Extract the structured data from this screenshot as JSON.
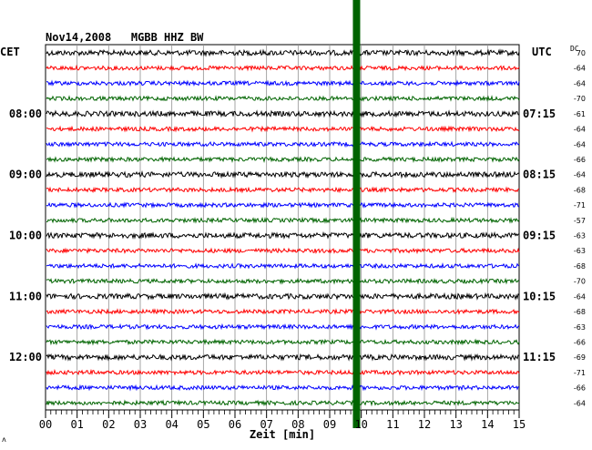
{
  "header": {
    "title": "Nov14,2008   MGBB HHZ BW",
    "left_zone": "CET",
    "right_zone": "UTC",
    "dc_label": "DC",
    "corner_mark": "ʌ"
  },
  "chart_data": {
    "type": "line",
    "subtype": "seismogram-helicorder",
    "xlabel": "Zeit [min]",
    "x_ticks": [
      "00",
      "01",
      "02",
      "03",
      "04",
      "05",
      "06",
      "07",
      "08",
      "09",
      "10",
      "11",
      "12",
      "13",
      "14",
      "15"
    ],
    "xlim": [
      0,
      15
    ],
    "trace_colors": [
      "#000000",
      "#ff0000",
      "#0000ff",
      "#006400"
    ],
    "left_time_labels": [
      {
        "row": 4,
        "label": "08:00"
      },
      {
        "row": 8,
        "label": "09:00"
      },
      {
        "row": 12,
        "label": "10:00"
      },
      {
        "row": 16,
        "label": "11:00"
      },
      {
        "row": 20,
        "label": "12:00"
      }
    ],
    "right_time_labels": [
      {
        "row": 4,
        "label": "07:15"
      },
      {
        "row": 8,
        "label": "08:15"
      },
      {
        "row": 12,
        "label": "09:15"
      },
      {
        "row": 16,
        "label": "10:15"
      },
      {
        "row": 20,
        "label": "11:15"
      }
    ],
    "dc_values": [
      "70",
      "-64",
      "-64",
      "-70",
      "-61",
      "-64",
      "-64",
      "-66",
      "-64",
      "-68",
      "-71",
      "-57",
      "-63",
      "-63",
      "-68",
      "-70",
      "-64",
      "-68",
      "-63",
      "-66",
      "-69",
      "-71",
      "-66",
      "-64"
    ],
    "marker": {
      "color": "#006400",
      "x_minute": 9.85
    }
  }
}
